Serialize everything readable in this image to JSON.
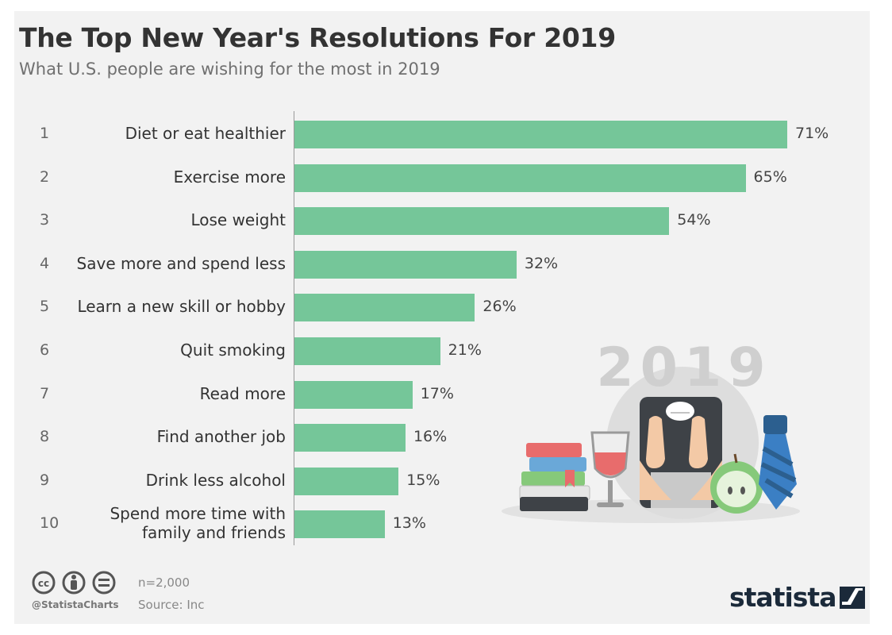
{
  "title": "The Top New Year's Resolutions For 2019",
  "subtitle": "What U.S. people are wishing for the most in 2019",
  "chart_data": {
    "type": "bar",
    "orientation": "horizontal",
    "categories": [
      "Diet or eat healthier",
      "Exercise more",
      "Lose weight",
      "Save more and spend less",
      "Learn a new skill or hobby",
      "Quit smoking",
      "Read more",
      "Find another job",
      "Drink less alcohol",
      "Spend more time with family and friends"
    ],
    "category_lines": [
      [
        "Diet or eat healthier"
      ],
      [
        "Exercise more"
      ],
      [
        "Lose weight"
      ],
      [
        "Save more and spend less"
      ],
      [
        "Learn a new skill or hobby"
      ],
      [
        "Quit smoking"
      ],
      [
        "Read more"
      ],
      [
        "Find another job"
      ],
      [
        "Drink less alcohol"
      ],
      [
        "Spend more time with",
        "family and friends"
      ]
    ],
    "ranks": [
      "1",
      "2",
      "3",
      "4",
      "5",
      "6",
      "7",
      "8",
      "9",
      "10"
    ],
    "values": [
      71,
      65,
      54,
      32,
      26,
      21,
      17,
      16,
      15,
      13
    ],
    "value_labels": [
      "71%",
      "65%",
      "54%",
      "32%",
      "26%",
      "21%",
      "17%",
      "16%",
      "15%",
      "13%"
    ],
    "unit": "%",
    "xlim": [
      0,
      71
    ],
    "grid": false,
    "colors": {
      "bar": "#75c699"
    }
  },
  "illustration": {
    "year_text": "2019"
  },
  "footer": {
    "sample": "n=2,000",
    "source": "Source: Inc",
    "handle": "@StatistaCharts",
    "brand": "statista"
  },
  "icons": {
    "cc": "creative-commons-icon",
    "by": "attribution-icon",
    "nd": "no-derivatives-icon",
    "logo": "statista-logo-icon"
  }
}
